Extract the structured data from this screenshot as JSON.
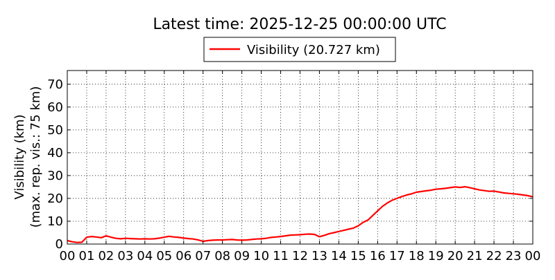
{
  "chart_data": {
    "type": "line",
    "title": "Latest time: 2025-12-25 00:00:00 UTC",
    "xlabel": "",
    "ylabel": "Visibility (km)",
    "ylabel2": "(max. rep. vis.: 75 km)",
    "xlim": [
      0,
      24
    ],
    "ylim": [
      0,
      76
    ],
    "x_ticks": [
      0,
      1,
      2,
      3,
      4,
      5,
      6,
      7,
      8,
      9,
      10,
      11,
      12,
      13,
      14,
      15,
      16,
      17,
      18,
      19,
      20,
      21,
      22,
      23,
      24
    ],
    "x_tick_labels": [
      "00",
      "01",
      "02",
      "03",
      "04",
      "05",
      "06",
      "07",
      "08",
      "09",
      "10",
      "11",
      "12",
      "13",
      "14",
      "15",
      "16",
      "17",
      "18",
      "19",
      "20",
      "21",
      "22",
      "23",
      "00"
    ],
    "y_ticks": [
      0,
      10,
      20,
      30,
      40,
      50,
      60,
      70
    ],
    "y_tick_labels": [
      "0",
      "10",
      "20",
      "30",
      "40",
      "50",
      "60",
      "70"
    ],
    "grid": true,
    "legend_position": "top-center",
    "series": [
      {
        "name": "Visibility (20.727 km)",
        "color": "#ff0000",
        "x": [
          0.0,
          0.25,
          0.5,
          0.75,
          1.0,
          1.25,
          1.5,
          1.75,
          2.0,
          2.25,
          2.5,
          2.75,
          3.0,
          3.25,
          3.5,
          3.75,
          4.0,
          4.25,
          4.5,
          4.75,
          5.0,
          5.25,
          5.5,
          5.75,
          6.0,
          6.25,
          6.5,
          6.75,
          7.0,
          7.25,
          7.5,
          7.75,
          8.0,
          8.25,
          8.5,
          8.75,
          9.0,
          9.25,
          9.5,
          9.75,
          10.0,
          10.25,
          10.5,
          10.75,
          11.0,
          11.25,
          11.5,
          11.75,
          12.0,
          12.25,
          12.5,
          12.75,
          13.0,
          13.25,
          13.5,
          13.75,
          14.0,
          14.25,
          14.5,
          14.75,
          15.0,
          15.25,
          15.5,
          15.75,
          16.0,
          16.25,
          16.5,
          16.75,
          17.0,
          17.25,
          17.5,
          17.75,
          18.0,
          18.25,
          18.5,
          18.75,
          19.0,
          19.25,
          19.5,
          19.75,
          20.0,
          20.25,
          20.5,
          20.75,
          21.0,
          21.25,
          21.5,
          21.75,
          22.0,
          22.25,
          22.5,
          22.75,
          23.0,
          23.25,
          23.5,
          23.75,
          24.0
        ],
        "y": [
          1.5,
          1.0,
          0.7,
          0.8,
          3.0,
          3.3,
          3.1,
          2.8,
          3.6,
          3.0,
          2.5,
          2.3,
          2.5,
          2.4,
          2.3,
          2.2,
          2.3,
          2.2,
          2.3,
          2.6,
          3.0,
          3.4,
          3.1,
          2.9,
          2.6,
          2.4,
          2.2,
          1.8,
          1.2,
          1.5,
          1.7,
          1.8,
          1.8,
          1.9,
          2.0,
          1.8,
          1.7,
          1.8,
          2.0,
          2.2,
          2.3,
          2.5,
          2.9,
          3.1,
          3.3,
          3.6,
          3.9,
          4.0,
          4.1,
          4.3,
          4.4,
          4.2,
          3.2,
          3.8,
          4.5,
          5.0,
          5.5,
          6.0,
          6.5,
          7.0,
          8.0,
          9.5,
          10.5,
          12.5,
          14.5,
          16.5,
          18.0,
          19.2,
          20.0,
          20.8,
          21.5,
          22.0,
          22.7,
          23.0,
          23.3,
          23.6,
          24.0,
          24.2,
          24.4,
          24.7,
          25.0,
          24.8,
          25.1,
          24.7,
          24.2,
          23.7,
          23.4,
          23.1,
          23.2,
          22.8,
          22.4,
          22.2,
          22.0,
          21.8,
          21.5,
          21.2,
          20.7
        ]
      }
    ]
  }
}
